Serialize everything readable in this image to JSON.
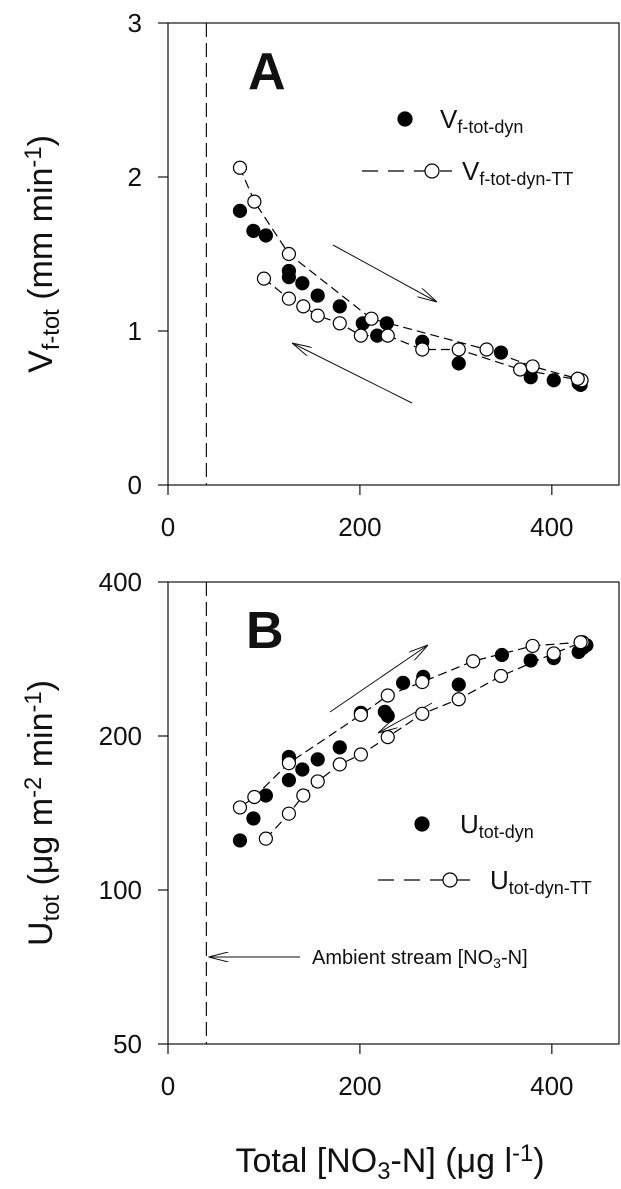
{
  "chart_data": [
    {
      "type": "scatter",
      "panel_label": "A",
      "ylabel": [
        "V",
        "f-tot",
        " (mm min",
        "-1",
        ")"
      ],
      "ylabel_styles": [
        "base",
        "sub",
        "base",
        "sup",
        "base"
      ],
      "xlim": [
        0,
        470
      ],
      "xticks": [
        0,
        200,
        400
      ],
      "ylim": [
        0,
        3
      ],
      "yticks": [
        0,
        1,
        2,
        3
      ],
      "log_y": false,
      "vline": 40,
      "series": [
        {
          "name": [
            "V",
            "f-tot-dyn"
          ],
          "color": "#000000",
          "filled": true,
          "line": "none",
          "x": [
            75,
            89,
            102,
            126,
            126,
            140,
            156,
            179,
            203,
            218,
            228,
            265,
            303,
            347,
            378,
            402,
            428,
            430
          ],
          "values": [
            1.78,
            1.65,
            1.62,
            1.39,
            1.35,
            1.31,
            1.23,
            1.16,
            1.05,
            0.97,
            1.05,
            0.93,
            0.79,
            0.86,
            0.7,
            0.68,
            0.66,
            0.65
          ]
        },
        {
          "name": [
            "V",
            "f-tot-dyn-TT"
          ],
          "color": "#000000",
          "filled": false,
          "line": "dashed",
          "x": [
            100,
            126,
            141,
            156,
            179,
            201,
            229,
            265,
            303,
            367,
            431,
            427,
            380,
            332,
            212,
            126,
            90,
            75
          ],
          "values": [
            1.34,
            1.21,
            1.16,
            1.1,
            1.05,
            0.97,
            0.97,
            0.88,
            0.88,
            0.75,
            0.68,
            0.69,
            0.77,
            0.88,
            1.08,
            1.5,
            1.84,
            2.06
          ]
        }
      ]
    },
    {
      "type": "scatter",
      "panel_label": "B",
      "ylabel": [
        "U",
        "tot",
        " (μg m",
        "-2",
        " min",
        "-1",
        ")"
      ],
      "ylabel_styles": [
        "base",
        "sub",
        "base",
        "sup",
        "base",
        "sup",
        "base"
      ],
      "xlabel": [
        "Total [NO",
        "3",
        "-N] (μg l",
        "-1",
        ")"
      ],
      "xlabel_styles": [
        "base",
        "sub",
        "base",
        "sup",
        "base"
      ],
      "xlim": [
        0,
        470
      ],
      "xticks": [
        0,
        200,
        400
      ],
      "ylim": [
        50,
        400
      ],
      "yticks": [
        50,
        100,
        200,
        400
      ],
      "log_y": true,
      "vline": 40,
      "annotation": [
        "Ambient stream [NO",
        "3",
        "-N]"
      ],
      "annotation_styles": [
        "base",
        "sub",
        "base"
      ],
      "series": [
        {
          "name": [
            "U",
            "tot-dyn"
          ],
          "color": "#000000",
          "filled": true,
          "line": "none",
          "x": [
            75,
            89,
            102,
            126,
            126,
            126,
            140,
            156,
            179,
            201,
            226,
            229,
            245,
            266,
            303,
            348,
            378,
            402,
            428,
            432,
            436
          ],
          "values": [
            125,
            138,
            153,
            164,
            180,
            182,
            172,
            180,
            190,
            222,
            223,
            219,
            254,
            261,
            252,
            288,
            281,
            284,
            292,
            297,
            301
          ]
        },
        {
          "name": [
            "U",
            "tot-dyn-TT"
          ],
          "color": "#000000",
          "filled": false,
          "line": "dashed",
          "x": [
            102,
            126,
            141,
            156,
            179,
            201,
            229,
            265,
            303,
            347,
            402,
            432,
            430,
            380,
            318,
            265,
            229,
            201,
            126,
            90,
            75
          ],
          "values": [
            126,
            141,
            153,
            163,
            176,
            184,
            199,
            221,
            236,
            262,
            290,
            305,
            305,
            300,
            280,
            255,
            240,
            220,
            177,
            152,
            145
          ]
        }
      ]
    }
  ]
}
